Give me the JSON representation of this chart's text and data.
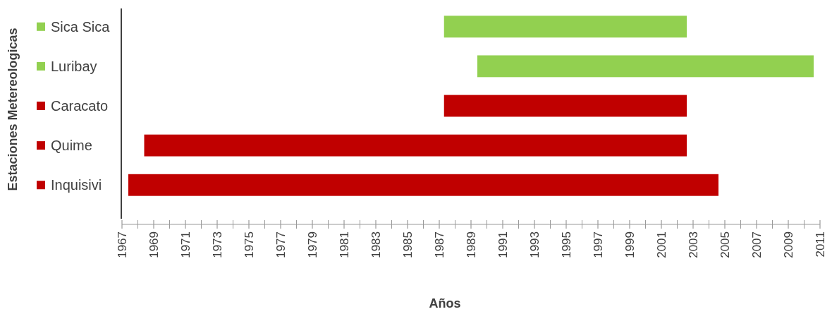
{
  "chart_data": {
    "type": "bar",
    "orientation": "horizontal",
    "xlabel": "Años",
    "ylabel": "Estaciones Metereologicas",
    "categories": [
      "Sica Sica",
      "Luribay",
      "Caracato",
      "Quime",
      "Inquisivi"
    ],
    "base": [
      1987.3,
      1989.4,
      1987.3,
      1968.4,
      1967.4
    ],
    "values": [
      15.3,
      21.2,
      15.3,
      34.2,
      37.2
    ],
    "colors": [
      "#92d050",
      "#92d050",
      "#c00000",
      "#c00000",
      "#c00000"
    ],
    "xlim": [
      1967,
      2011
    ],
    "xticks": [
      1967,
      {
        "value": 1968,
        "label": null
      },
      1969,
      {
        "value": 1970,
        "label": null
      },
      1971,
      {
        "value": 1972,
        "label": null
      },
      1973,
      {
        "value": 1974,
        "label": null
      },
      1975,
      {
        "value": 1976,
        "label": null
      },
      1977,
      {
        "value": 1978,
        "label": null
      },
      1979,
      {
        "value": 1980,
        "label": null
      },
      1981,
      {
        "value": 1982,
        "label": null
      },
      1983,
      {
        "value": 1984,
        "label": null
      },
      1985,
      {
        "value": 1986,
        "label": null
      },
      1987,
      {
        "value": 1988,
        "label": null
      },
      1989,
      {
        "value": 1990,
        "label": null
      },
      1991,
      {
        "value": 1992,
        "label": null
      },
      1993,
      {
        "value": 1994,
        "label": null
      },
      1995,
      {
        "value": 1996,
        "label": null
      },
      1997,
      {
        "value": 1998,
        "label": null
      },
      1999,
      {
        "value": 2000,
        "label": null
      },
      2001,
      {
        "value": 2002,
        "label": null
      },
      2003,
      {
        "value": 2004,
        "label": null
      },
      2005,
      {
        "value": 2006,
        "label": null
      },
      2007,
      {
        "value": 2008,
        "label": null
      },
      2009,
      {
        "value": 2010,
        "label": null
      },
      2011
    ],
    "grid": false
  }
}
